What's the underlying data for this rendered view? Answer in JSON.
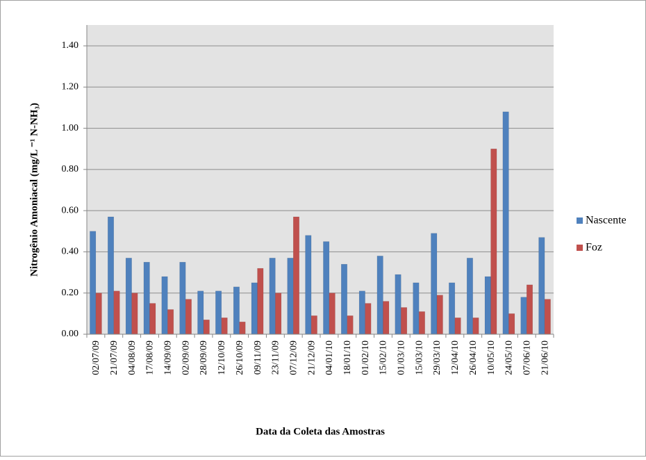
{
  "chart_data": {
    "type": "bar",
    "y_label": "Nitrogênio Amoniacal (mg/L ⁻¹ N-NH₃)",
    "x_label": "Data da Coleta das Amostras",
    "categories": [
      "02/07/09",
      "21/07/09",
      "04/08/09",
      "17/08/09",
      "14/09/09",
      "02/09/09",
      "28/09/09",
      "12/10/09",
      "26/10/09",
      "09/11/09",
      "23/11/09",
      "07/12/09",
      "21/12/09",
      "04/01/10",
      "18/01/10",
      "01/02/10",
      "15/02/10",
      "01/03/10",
      "15/03/10",
      "29/03/10",
      "12/04/10",
      "26/04/10",
      "10/05/10",
      "24/05/10",
      "07/06/10",
      "21/06/10"
    ],
    "series": [
      {
        "name": "Nascente",
        "color": "#4f81bd",
        "values": [
          0.5,
          0.57,
          0.37,
          0.35,
          0.28,
          0.35,
          0.21,
          0.21,
          0.23,
          0.25,
          0.37,
          0.37,
          0.48,
          0.45,
          0.34,
          0.21,
          0.38,
          0.29,
          0.25,
          0.49,
          0.25,
          0.37,
          0.28,
          1.08,
          0.18,
          0.47
        ]
      },
      {
        "name": "Foz",
        "color": "#c0504d",
        "values": [
          0.2,
          0.21,
          0.2,
          0.15,
          0.12,
          0.17,
          0.07,
          0.08,
          0.06,
          0.32,
          0.2,
          0.57,
          0.09,
          0.2,
          0.09,
          0.15,
          0.16,
          0.13,
          0.11,
          0.19,
          0.08,
          0.08,
          0.9,
          0.1,
          0.24,
          0.17
        ]
      }
    ],
    "ylim": [
      0,
      1.4
    ],
    "yticks": [
      {
        "value": 0,
        "label": "0.00"
      },
      {
        "value": 0.2,
        "label": "0.20"
      },
      {
        "value": 0.4,
        "label": "0.40"
      },
      {
        "value": 0.6,
        "label": "0.60"
      },
      {
        "value": 0.8,
        "label": "0.80"
      },
      {
        "value": 1,
        "label": "1.00"
      },
      {
        "value": 1.2,
        "label": "1.20"
      },
      {
        "value": 1.4,
        "label": "1.40"
      }
    ],
    "grid": true,
    "legend": "right"
  }
}
